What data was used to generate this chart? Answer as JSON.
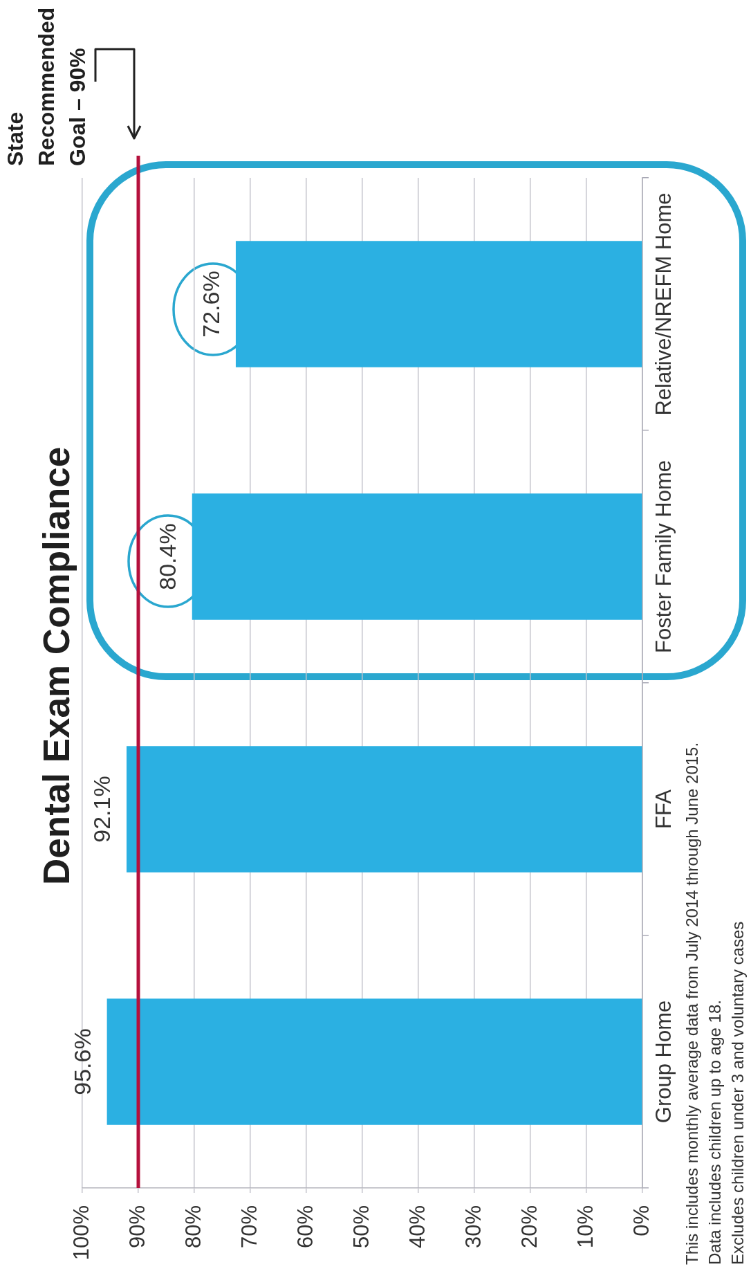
{
  "chart_data": {
    "type": "bar",
    "title": "Dental Exam Compliance",
    "orientation": "horizontal",
    "categories": [
      "Relative/NREFM Home",
      "Foster Family Home",
      "FFA",
      "Group Home"
    ],
    "values": [
      72.6,
      80.4,
      92.1,
      95.6
    ],
    "color": "#2bb0e2",
    "value_labels": [
      "72.6%",
      "80.4%",
      "92.1%",
      "95.6%"
    ],
    "xlim": [
      100,
      0
    ],
    "xticks": [
      {
        "value": 100,
        "label": "100%"
      },
      {
        "value": 90,
        "label": "90%"
      },
      {
        "value": 80,
        "label": "80%"
      },
      {
        "value": 70,
        "label": "70%"
      },
      {
        "value": 60,
        "label": "60%"
      },
      {
        "value": 50,
        "label": "50%"
      },
      {
        "value": 40,
        "label": "40%"
      },
      {
        "value": 30,
        "label": "30%"
      },
      {
        "value": 20,
        "label": "20%"
      },
      {
        "value": 10,
        "label": "10%"
      },
      {
        "value": 0,
        "label": "0%"
      }
    ],
    "grid": "x",
    "ref_lines": [
      {
        "axis": "x",
        "value": 90,
        "label": "State Recommended Goal – 90%",
        "color": "#b5103c"
      }
    ],
    "annotations": [
      "This includes monthly average data from July 2014 through June 2015.",
      "Data includes children up to age 18.",
      "Excludes children under 3 and voluntary cases"
    ]
  }
}
